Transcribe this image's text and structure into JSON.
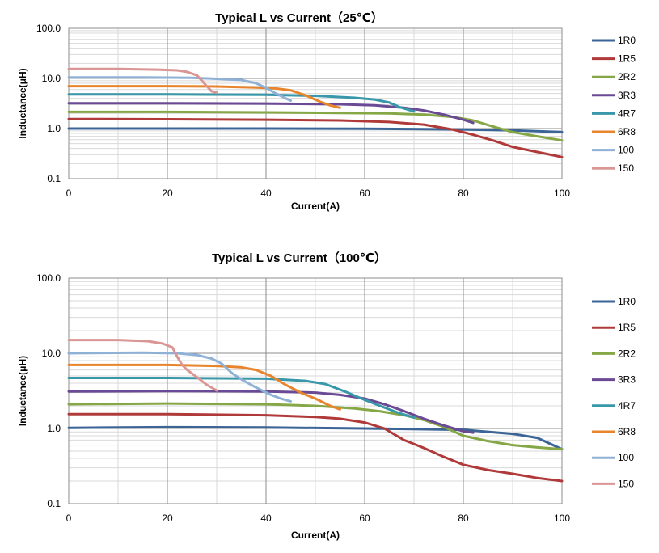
{
  "chart_data": [
    {
      "type": "line",
      "title": "Typical L vs Current（25℃）",
      "xlabel": "Current(A)",
      "ylabel": "Inductance(μH)",
      "xlim": [
        0,
        100
      ],
      "ylim": [
        0.1,
        100
      ],
      "yscale": "log",
      "x_ticks": [
        "0",
        "20",
        "40",
        "60",
        "80",
        "100"
      ],
      "y_ticks": [
        "0.1",
        "1.0",
        "10.0",
        "100.0"
      ],
      "grid": true,
      "legend": "right",
      "series": [
        {
          "name": "1R0",
          "color": "#3a6596",
          "points": [
            [
              0,
              1.0
            ],
            [
              20,
              1.0
            ],
            [
              40,
              1.0
            ],
            [
              60,
              0.99
            ],
            [
              80,
              0.96
            ],
            [
              90,
              0.92
            ],
            [
              100,
              0.85
            ]
          ]
        },
        {
          "name": "1R5",
          "color": "#b03a3a",
          "points": [
            [
              0,
              1.55
            ],
            [
              20,
              1.53
            ],
            [
              40,
              1.5
            ],
            [
              55,
              1.45
            ],
            [
              65,
              1.35
            ],
            [
              72,
              1.2
            ],
            [
              78,
              0.95
            ],
            [
              82,
              0.75
            ],
            [
              86,
              0.58
            ],
            [
              90,
              0.43
            ],
            [
              95,
              0.34
            ],
            [
              100,
              0.27
            ]
          ]
        },
        {
          "name": "2R2",
          "color": "#86a745",
          "points": [
            [
              0,
              2.15
            ],
            [
              20,
              2.15
            ],
            [
              40,
              2.1
            ],
            [
              55,
              2.05
            ],
            [
              65,
              2.0
            ],
            [
              72,
              1.9
            ],
            [
              78,
              1.7
            ],
            [
              82,
              1.45
            ],
            [
              86,
              1.1
            ],
            [
              90,
              0.85
            ],
            [
              95,
              0.7
            ],
            [
              100,
              0.58
            ]
          ]
        },
        {
          "name": "3R3",
          "color": "#6a4a94",
          "points": [
            [
              0,
              3.2
            ],
            [
              20,
              3.2
            ],
            [
              40,
              3.15
            ],
            [
              55,
              3.05
            ],
            [
              62,
              2.9
            ],
            [
              68,
              2.6
            ],
            [
              72,
              2.3
            ],
            [
              76,
              1.9
            ],
            [
              80,
              1.5
            ],
            [
              82,
              1.3
            ]
          ]
        },
        {
          "name": "4R7",
          "color": "#3997aa",
          "points": [
            [
              0,
              4.8
            ],
            [
              20,
              4.8
            ],
            [
              40,
              4.7
            ],
            [
              50,
              4.5
            ],
            [
              58,
              4.1
            ],
            [
              62,
              3.8
            ],
            [
              65,
              3.3
            ],
            [
              67,
              2.7
            ],
            [
              70,
              2.2
            ]
          ]
        },
        {
          "name": "6R8",
          "color": "#e8852c",
          "points": [
            [
              0,
              7.0
            ],
            [
              20,
              7.0
            ],
            [
              30,
              6.9
            ],
            [
              38,
              6.6
            ],
            [
              42,
              6.3
            ],
            [
              45,
              5.8
            ],
            [
              48,
              4.6
            ],
            [
              51,
              3.4
            ],
            [
              53,
              2.9
            ],
            [
              55,
              2.6
            ]
          ]
        },
        {
          "name": "100",
          "color": "#8fb1d6",
          "points": [
            [
              0,
              10.5
            ],
            [
              15,
              10.5
            ],
            [
              25,
              10.3
            ],
            [
              30,
              9.8
            ],
            [
              35,
              9.3
            ],
            [
              38,
              8.0
            ],
            [
              40,
              6.5
            ],
            [
              42,
              5.0
            ],
            [
              44,
              4.0
            ],
            [
              45,
              3.6
            ]
          ]
        },
        {
          "name": "150",
          "color": "#d99694",
          "points": [
            [
              0,
              15.5
            ],
            [
              10,
              15.5
            ],
            [
              18,
              15.0
            ],
            [
              22,
              14.5
            ],
            [
              24,
              13.5
            ],
            [
              26,
              11.5
            ],
            [
              27,
              9.0
            ],
            [
              28,
              7.0
            ],
            [
              29,
              5.5
            ],
            [
              30,
              5.2
            ]
          ]
        }
      ]
    },
    {
      "type": "line",
      "title": "Typical L vs Current（100℃）",
      "xlabel": "Current(A)",
      "ylabel": "Inductance(μH)",
      "xlim": [
        0,
        100
      ],
      "ylim": [
        0.1,
        100
      ],
      "yscale": "log",
      "x_ticks": [
        "0",
        "20",
        "40",
        "60",
        "80",
        "100"
      ],
      "y_ticks": [
        "0.1",
        "1.0",
        "10.0",
        "100.0"
      ],
      "grid": true,
      "legend": "right",
      "series": [
        {
          "name": "1R0",
          "color": "#3a6596",
          "points": [
            [
              0,
              1.02
            ],
            [
              20,
              1.04
            ],
            [
              40,
              1.03
            ],
            [
              60,
              1.0
            ],
            [
              80,
              0.96
            ],
            [
              90,
              0.85
            ],
            [
              95,
              0.75
            ],
            [
              100,
              0.53
            ]
          ]
        },
        {
          "name": "1R5",
          "color": "#b03a3a",
          "points": [
            [
              0,
              1.55
            ],
            [
              20,
              1.55
            ],
            [
              40,
              1.5
            ],
            [
              50,
              1.42
            ],
            [
              55,
              1.35
            ],
            [
              60,
              1.2
            ],
            [
              64,
              1.0
            ],
            [
              68,
              0.7
            ],
            [
              72,
              0.55
            ],
            [
              76,
              0.42
            ],
            [
              80,
              0.33
            ],
            [
              85,
              0.28
            ],
            [
              90,
              0.25
            ],
            [
              95,
              0.22
            ],
            [
              100,
              0.2
            ]
          ]
        },
        {
          "name": "2R2",
          "color": "#86a745",
          "points": [
            [
              0,
              2.1
            ],
            [
              20,
              2.15
            ],
            [
              40,
              2.1
            ],
            [
              50,
              2.0
            ],
            [
              58,
              1.85
            ],
            [
              63,
              1.7
            ],
            [
              68,
              1.5
            ],
            [
              72,
              1.3
            ],
            [
              76,
              1.05
            ],
            [
              80,
              0.8
            ],
            [
              85,
              0.68
            ],
            [
              90,
              0.6
            ],
            [
              95,
              0.56
            ],
            [
              100,
              0.53
            ]
          ]
        },
        {
          "name": "3R3",
          "color": "#6a4a94",
          "points": [
            [
              0,
              3.1
            ],
            [
              20,
              3.15
            ],
            [
              40,
              3.1
            ],
            [
              50,
              3.0
            ],
            [
              55,
              2.8
            ],
            [
              60,
              2.5
            ],
            [
              64,
              2.1
            ],
            [
              68,
              1.7
            ],
            [
              72,
              1.35
            ],
            [
              76,
              1.1
            ],
            [
              80,
              0.92
            ],
            [
              82,
              0.88
            ]
          ]
        },
        {
          "name": "4R7",
          "color": "#3997aa",
          "points": [
            [
              0,
              4.7
            ],
            [
              20,
              4.7
            ],
            [
              40,
              4.6
            ],
            [
              48,
              4.3
            ],
            [
              52,
              3.9
            ],
            [
              56,
              3.1
            ],
            [
              60,
              2.4
            ],
            [
              64,
              1.9
            ],
            [
              67,
              1.6
            ],
            [
              70,
              1.4
            ]
          ]
        },
        {
          "name": "6R8",
          "color": "#e8852c",
          "points": [
            [
              0,
              7.0
            ],
            [
              20,
              7.0
            ],
            [
              30,
              6.8
            ],
            [
              35,
              6.5
            ],
            [
              38,
              6.0
            ],
            [
              41,
              5.0
            ],
            [
              44,
              3.8
            ],
            [
              47,
              3.0
            ],
            [
              50,
              2.5
            ],
            [
              53,
              2.0
            ],
            [
              55,
              1.8
            ]
          ]
        },
        {
          "name": "100",
          "color": "#8fb1d6",
          "points": [
            [
              0,
              10.0
            ],
            [
              15,
              10.2
            ],
            [
              22,
              10.0
            ],
            [
              26,
              9.5
            ],
            [
              29,
              8.5
            ],
            [
              31,
              7.3
            ],
            [
              33,
              5.5
            ],
            [
              35,
              4.5
            ],
            [
              38,
              3.5
            ],
            [
              41,
              2.8
            ],
            [
              43,
              2.5
            ],
            [
              45,
              2.3
            ]
          ]
        },
        {
          "name": "150",
          "color": "#d99694",
          "points": [
            [
              0,
              15.0
            ],
            [
              10,
              15.0
            ],
            [
              16,
              14.5
            ],
            [
              19,
              13.5
            ],
            [
              21,
              12.0
            ],
            [
              22,
              9.0
            ],
            [
              23,
              7.0
            ],
            [
              24,
              6.0
            ],
            [
              26,
              4.8
            ],
            [
              28,
              3.8
            ],
            [
              30,
              3.2
            ]
          ]
        }
      ]
    }
  ]
}
